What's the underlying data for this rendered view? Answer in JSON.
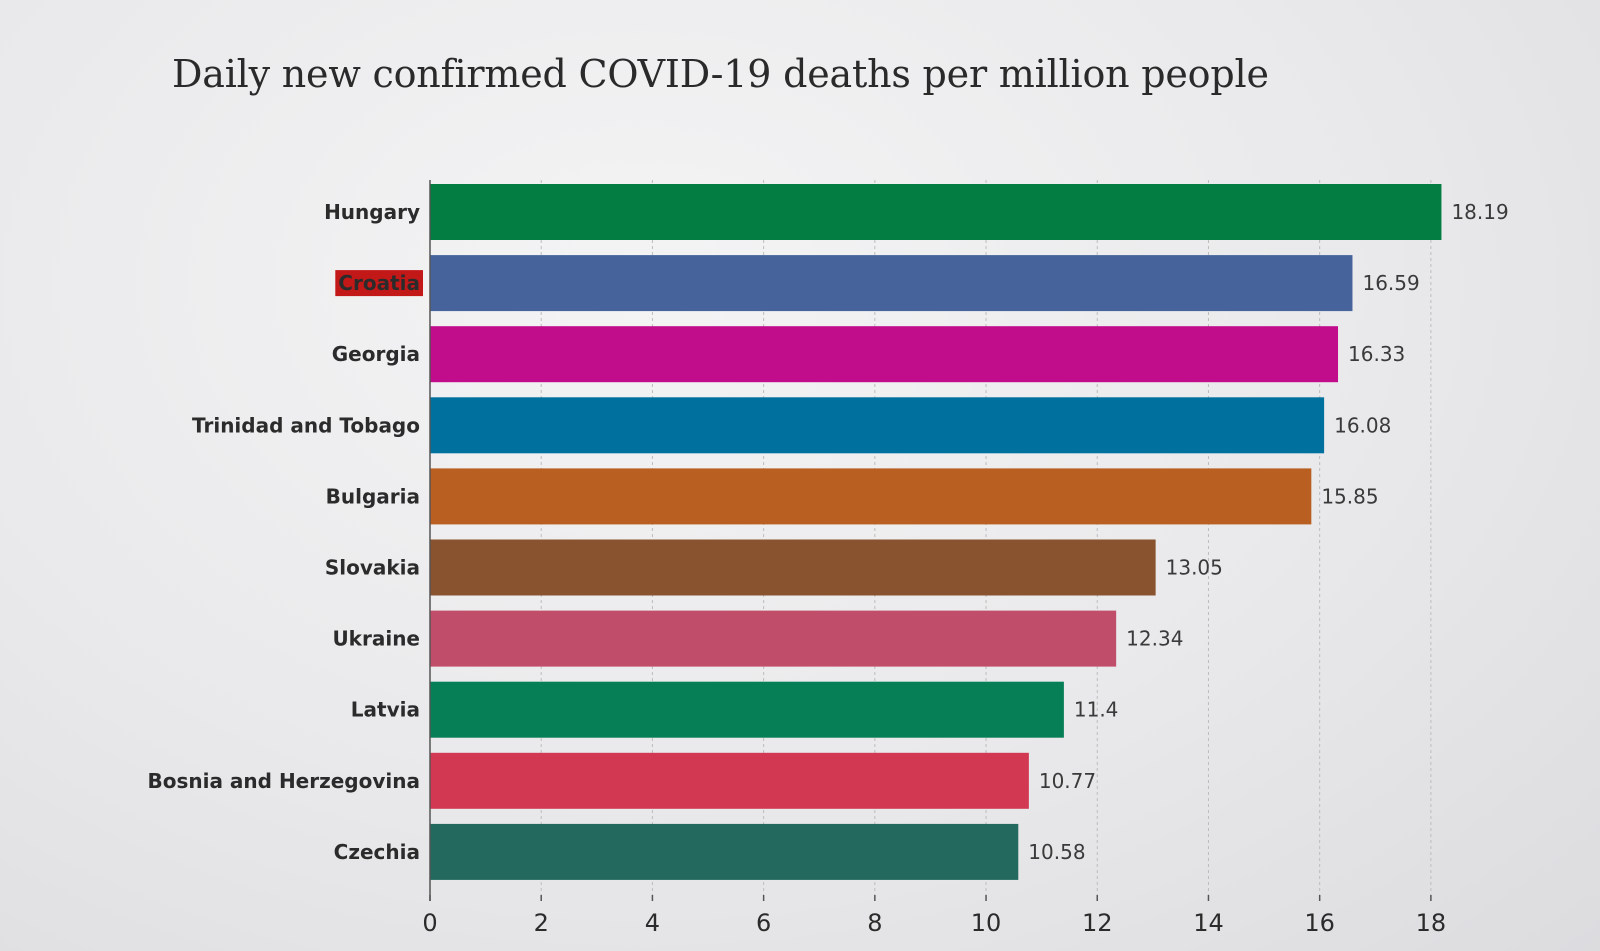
{
  "chart_data": {
    "type": "bar",
    "orientation": "horizontal",
    "title": "Daily new confirmed COVID-19 deaths per million people",
    "categories": [
      "Hungary",
      "Croatia",
      "Georgia",
      "Trinidad and Tobago",
      "Bulgaria",
      "Slovakia",
      "Ukraine",
      "Latvia",
      "Bosnia and Herzegovina",
      "Czechia"
    ],
    "values": [
      18.19,
      16.59,
      16.33,
      16.08,
      15.85,
      13.05,
      12.34,
      11.4,
      10.77,
      10.58
    ],
    "value_labels": [
      "18.19",
      "16.59",
      "16.33",
      "16.08",
      "15.85",
      "13.05",
      "12.34",
      "11.4",
      "10.77",
      "10.58"
    ],
    "bar_colors": [
      "#047d43",
      "#46649b",
      "#c10c8b",
      "#00709f",
      "#b95f22",
      "#8a532f",
      "#c04e6a",
      "#067f56",
      "#d23852",
      "#23695d"
    ],
    "highlighted_category": "Croatia",
    "highlight_color": "#c31818",
    "xlim": [
      0,
      18.2
    ],
    "xticks": [
      0,
      2,
      4,
      6,
      8,
      10,
      12,
      14,
      16,
      18
    ],
    "xtick_labels": [
      "0",
      "2",
      "4",
      "6",
      "8",
      "10",
      "12",
      "14",
      "16",
      "18"
    ],
    "grid": "vertical dashed",
    "xlabel": "",
    "ylabel": "",
    "legend": false
  }
}
